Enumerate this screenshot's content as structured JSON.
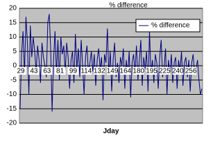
{
  "chart_data": {
    "type": "line",
    "title": "% difference",
    "x_label": "Jday",
    "categories": [
      "29",
      null,
      null,
      null,
      null,
      null,
      null,
      null,
      null,
      "43",
      null,
      null,
      null,
      null,
      null,
      null,
      null,
      null,
      "63",
      null,
      null,
      null,
      null,
      null,
      null,
      null,
      null,
      "81",
      null,
      null,
      null,
      null,
      null,
      null,
      null,
      null,
      "99",
      null,
      null,
      null,
      null,
      null,
      null,
      null,
      null,
      "114",
      null,
      null,
      null,
      null,
      null,
      null,
      null,
      null,
      "132",
      null,
      null,
      null,
      null,
      null,
      null,
      null,
      null,
      "149",
      null,
      null,
      null,
      null,
      null,
      null,
      null,
      null,
      "164",
      null,
      null,
      null,
      null,
      null,
      null,
      null,
      null,
      "180",
      null,
      null,
      null,
      null,
      null,
      null,
      null,
      null,
      "195",
      null,
      null,
      null,
      null,
      null,
      null,
      null,
      null,
      "225",
      null,
      null,
      null,
      null,
      null,
      null,
      null,
      null,
      "240",
      null,
      null,
      null,
      null,
      null,
      null,
      null,
      null,
      "256",
      null,
      null,
      null,
      null,
      null,
      null,
      null,
      null
    ],
    "series": [
      {
        "name": "% difference",
        "color": "#000080",
        "values": [
          -15,
          4,
          12,
          -3,
          17,
          8,
          -10,
          14,
          3,
          10,
          5,
          -2,
          7,
          2,
          -6,
          8,
          3,
          0,
          -4,
          15,
          18,
          6,
          -16,
          2,
          12,
          -3,
          9,
          -5,
          10,
          4,
          7,
          -2,
          8,
          3,
          -8,
          2,
          5,
          -6,
          11,
          -1,
          6,
          -4,
          9,
          0,
          -10,
          3,
          7,
          -3,
          1,
          5,
          -2,
          4,
          -7,
          2,
          6,
          -1,
          3,
          -12,
          4,
          1,
          13,
          -3,
          5,
          -9,
          2,
          8,
          -4,
          1,
          -6,
          3,
          0,
          6,
          -8,
          2,
          -3,
          5,
          -11,
          1,
          4,
          -2,
          7,
          -5,
          2,
          9,
          -7,
          3,
          -1,
          5,
          -9,
          12,
          -3,
          2,
          -6,
          4,
          1,
          -8,
          3,
          9,
          -4,
          -1,
          6,
          -10,
          2,
          -3,
          4,
          -6,
          1,
          3,
          -8,
          2,
          -2,
          5,
          -7,
          1,
          3,
          -4,
          2,
          -9,
          1,
          4,
          -3,
          -1,
          2,
          -5,
          -10,
          -8
        ]
      }
    ],
    "ylim": [
      -20,
      20
    ],
    "yticks": [
      -20,
      -15,
      -10,
      -5,
      0,
      5,
      10,
      15,
      20
    ],
    "grid": true,
    "legend": "top-right"
  }
}
